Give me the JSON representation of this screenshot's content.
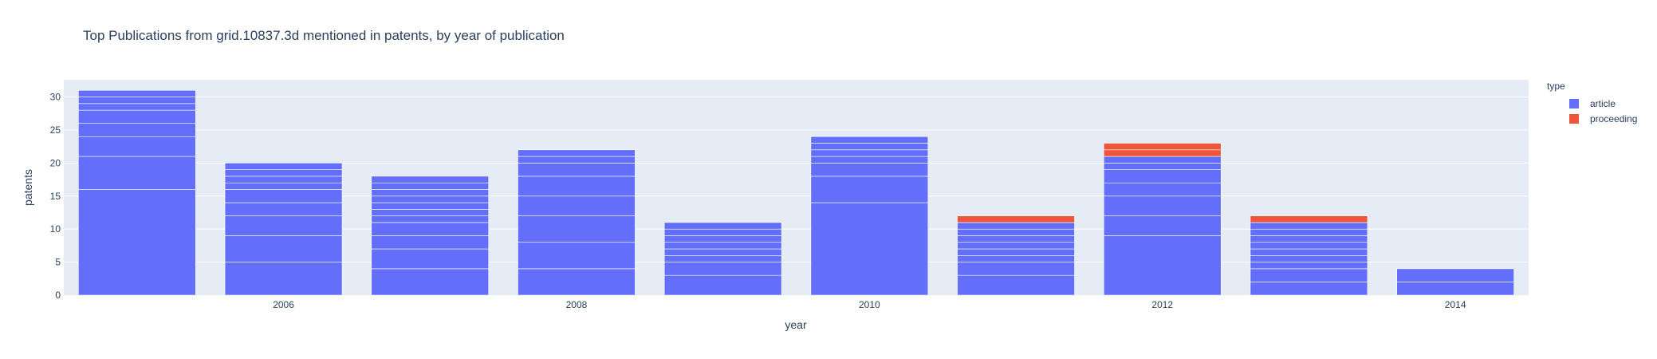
{
  "chart_data": {
    "type": "bar",
    "barmode": "stack",
    "title": "Top Publications from grid.10837.3d mentioned in patents, by year of publication",
    "xlabel": "year",
    "ylabel": "patents",
    "ylim": [
      0,
      32.6
    ],
    "yticks": [
      0,
      5,
      10,
      15,
      20,
      25,
      30
    ],
    "xticks": [
      2006,
      2008,
      2010,
      2012,
      2014
    ],
    "x": [
      2005,
      2006,
      2007,
      2008,
      2009,
      2010,
      2011,
      2012,
      2013,
      2014
    ],
    "grid": true,
    "legend": {
      "title": "type",
      "placement": "top-right"
    },
    "series": [
      {
        "name": "article",
        "color": "#636efa",
        "segments": [
          [
            16,
            5,
            3,
            2,
            2,
            1,
            1,
            1
          ],
          [
            5,
            4,
            3,
            2,
            2,
            1,
            1,
            1,
            1
          ],
          [
            4,
            3,
            2,
            2,
            1,
            1,
            1,
            1,
            1,
            1,
            1
          ],
          [
            4,
            4,
            4,
            3,
            3,
            2,
            1,
            1
          ],
          [
            3,
            2,
            1,
            1,
            1,
            1,
            1,
            1
          ],
          [
            14,
            4,
            2,
            1,
            1,
            1,
            1
          ],
          [
            3,
            2,
            1,
            1,
            1,
            1,
            1,
            1
          ],
          [
            9,
            3,
            3,
            2,
            2,
            1,
            1
          ],
          [
            2,
            2,
            1,
            1,
            1,
            1,
            1,
            1,
            1
          ],
          [
            2,
            2
          ]
        ]
      },
      {
        "name": "proceeding",
        "color": "#ef553b",
        "segments": [
          [],
          [],
          [],
          [],
          [],
          [],
          [
            1
          ],
          [
            1,
            1
          ],
          [
            1
          ],
          []
        ]
      }
    ]
  }
}
